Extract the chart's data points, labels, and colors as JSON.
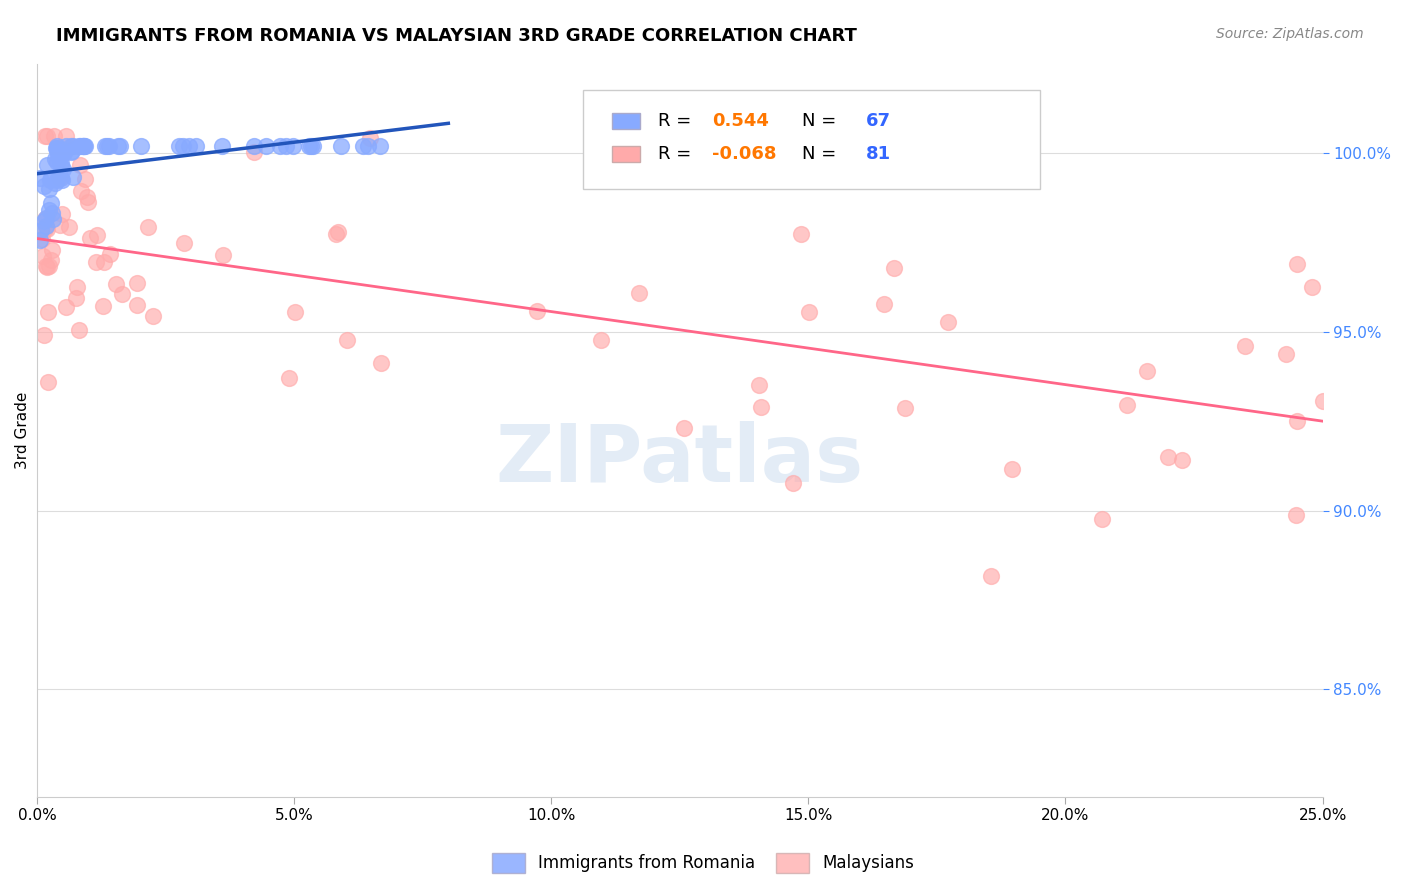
{
  "title": "IMMIGRANTS FROM ROMANIA VS MALAYSIAN 3RD GRADE CORRELATION CHART",
  "source": "Source: ZipAtlas.com",
  "ylabel": "3rd Grade",
  "ylabel_right_ticks": [
    "100.0%",
    "95.0%",
    "90.0%",
    "85.0%"
  ],
  "ylabel_right_vals": [
    1.0,
    0.95,
    0.9,
    0.85
  ],
  "blue_R": 0.544,
  "blue_N": 67,
  "pink_R": -0.068,
  "pink_N": 81,
  "blue_color": "#88aaff",
  "pink_color": "#ffaaaa",
  "blue_line_color": "#2255bb",
  "pink_line_color": "#ff6688",
  "xlim": [
    0.0,
    0.25
  ],
  "ylim": [
    0.82,
    1.025
  ],
  "watermark": "ZIPatlas",
  "legend_label1": "Immigrants from Romania",
  "legend_label2": "Malaysians",
  "x_tick_vals": [
    0.0,
    0.05,
    0.1,
    0.15,
    0.2,
    0.25
  ],
  "x_tick_labels": [
    "0.0%",
    "5.0%",
    "10.0%",
    "15.0%",
    "20.0%",
    "25.0%"
  ]
}
